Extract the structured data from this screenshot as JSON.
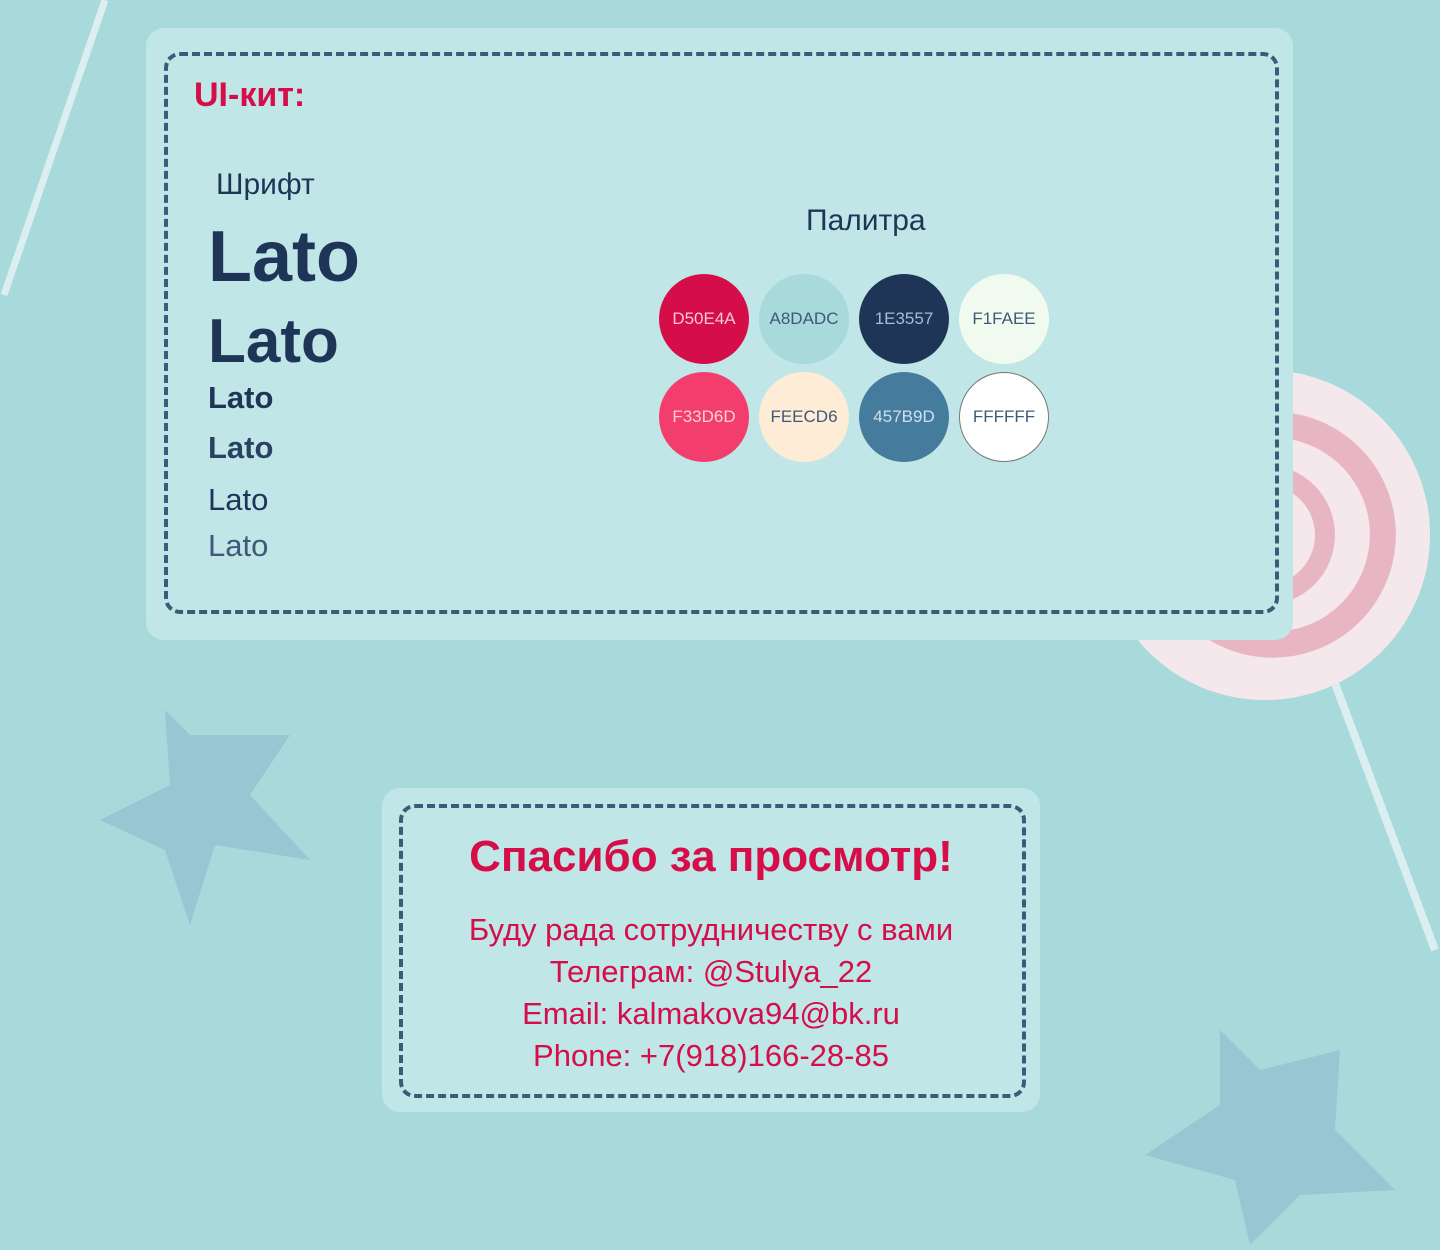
{
  "ui_kit": {
    "title": "UI-кит:",
    "font_label": "Шрифт",
    "font_samples": [
      "Lato",
      "Lato",
      "Lato",
      "Lato",
      "Lato",
      "Lato"
    ],
    "palette_label": "Палитра",
    "palette": [
      {
        "hex": "D50E4A",
        "color": "#D50E4A",
        "text_color": "#f5c9d6"
      },
      {
        "hex": "A8DADC",
        "color": "#A8DADC",
        "text_color": "#3e5a78"
      },
      {
        "hex": "1E3557",
        "color": "#1E3557",
        "text_color": "#a9bcd2"
      },
      {
        "hex": "F1FAEE",
        "color": "#F1FAEE",
        "text_color": "#3e5a78"
      },
      {
        "hex": "F33D6D",
        "color": "#F33D6D",
        "text_color": "#fbd0dc"
      },
      {
        "hex": "FEECD6",
        "color": "#FEECD6",
        "text_color": "#3e5a78"
      },
      {
        "hex": "457B9D",
        "color": "#457B9D",
        "text_color": "#cfe0ec"
      },
      {
        "hex": "FFFFFF",
        "color": "#FFFFFF",
        "text_color": "#3e5a78"
      }
    ]
  },
  "thanks": {
    "title": "Спасибо за просмотр!",
    "lines": [
      "Буду рада сотрудничеству с вами",
      "Телеграм: @Stulya_22",
      "Email: kalmakova94@bk.ru",
      "Phone: +7(918)166-28-85"
    ]
  },
  "colors": {
    "accent": "#D50E4A",
    "text": "#1E3557",
    "background": "#A8DADC"
  }
}
